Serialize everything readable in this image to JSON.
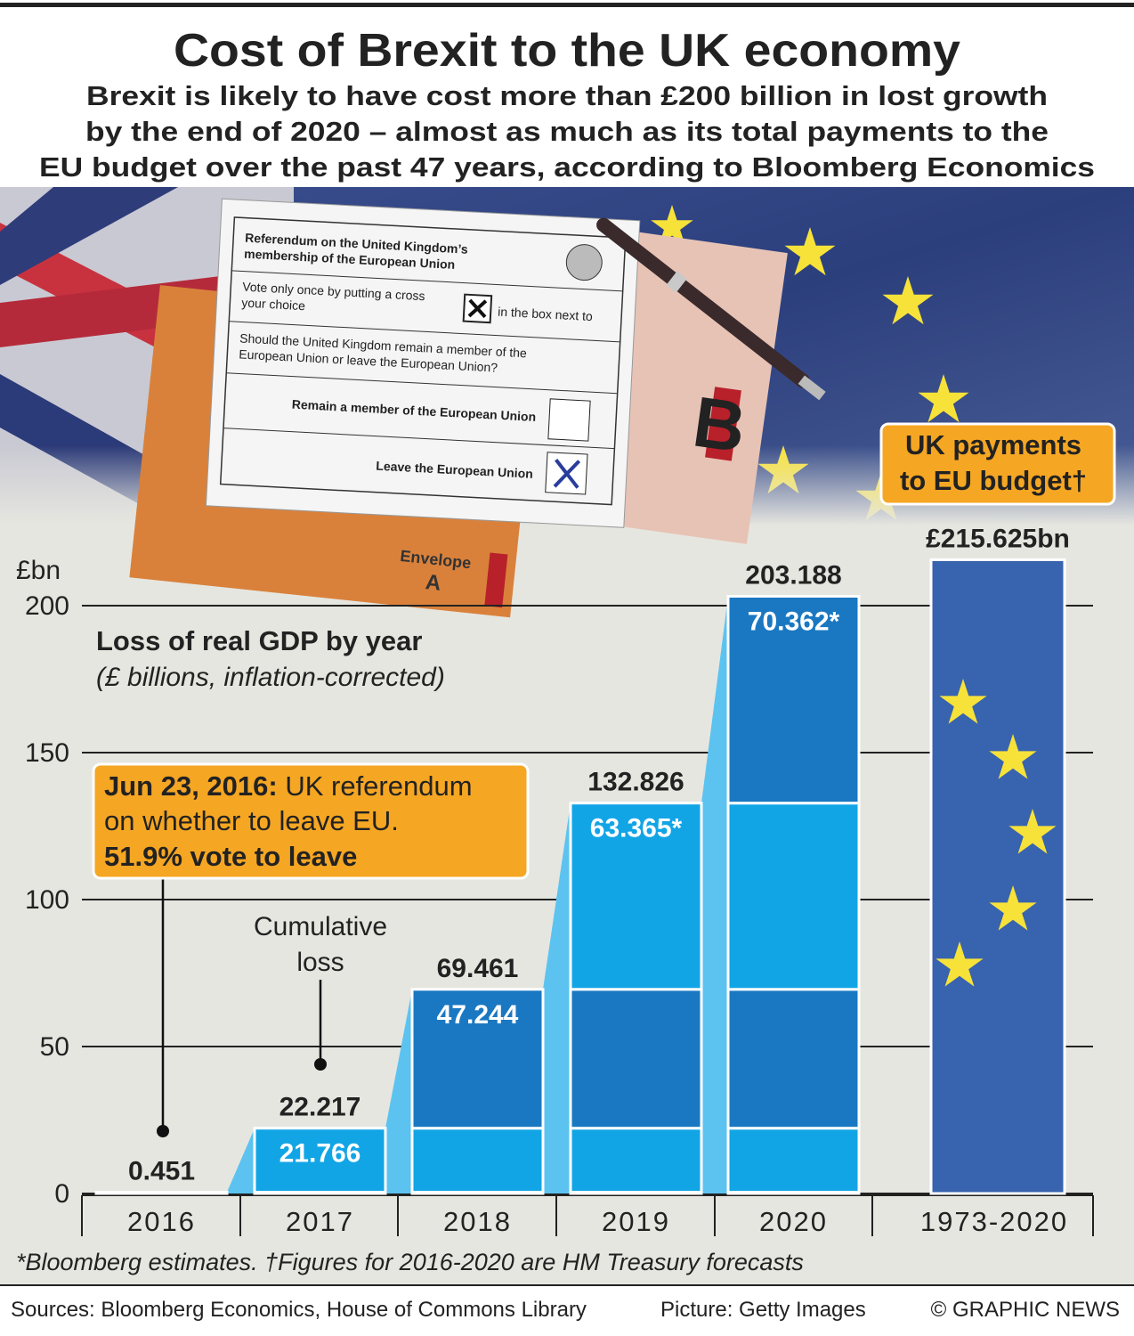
{
  "header": {
    "title": "Cost of Brexit to the UK economy",
    "subtitle": [
      "Brexit is likely to have cost more than £200 billion in lost growth",
      "by the end of 2020 – almost as much as its total payments to the",
      "EU budget over the past 47 years, according to Bloomberg Economics"
    ]
  },
  "photo": {
    "ballot": [
      "Referendum on the United Kingdom’s",
      "membership of the European Union",
      "Vote only once by putting a cross",
      "your choice",
      "in the box next to",
      "Should the United Kingdom remain a member of the",
      "European Union or leave the European Union?",
      "Remain a member of the European Union",
      "Leave the European Union"
    ],
    "envelope": [
      "Envelope",
      "A"
    ],
    "envelope_b": "B"
  },
  "chart_data": {
    "type": "bar",
    "title": "Loss of real GDP by year",
    "subtitle": "(£ billions, inflation-corrected)",
    "unit": "£bn",
    "categories": [
      "2016",
      "2017",
      "2018",
      "2019",
      "2020"
    ],
    "annual": {
      "values": [
        0.451,
        21.766,
        47.244,
        63.365,
        70.362
      ],
      "value_labels": [
        null,
        "21.766",
        "47.244",
        "63.365*",
        "70.362*"
      ],
      "colors": [
        "#1a78c2",
        "#12a5e6",
        "#1a78c2",
        "#12a5e6",
        "#1a78c2"
      ]
    },
    "totals": [
      0.451,
      22.217,
      69.461,
      132.826,
      203.188
    ],
    "payments": {
      "title": [
        "UK payments",
        "to EU budget†"
      ],
      "category": "1973-2020",
      "value": 215.625,
      "value_label": "£215.625bn",
      "color": "#3863ae"
    },
    "ylim": [
      0,
      220
    ],
    "yticks": [
      0,
      50,
      100,
      150,
      200
    ],
    "grid": true,
    "annotations": {
      "referendum": [
        "Jun 23, 2016:",
        " UK referendum",
        "on whether to leave EU.",
        "51.9% vote to leave"
      ],
      "cumulative": [
        "Cumulative",
        "loss"
      ]
    },
    "footnote": "*Bloomberg estimates. †Figures for 2016-2020 are HM Treasury forecasts"
  },
  "footer": {
    "sources": "Sources: Bloomberg Economics, House of Commons Library",
    "picture": "Picture: Getty Images",
    "credit": "© GRAPHIC NEWS"
  }
}
